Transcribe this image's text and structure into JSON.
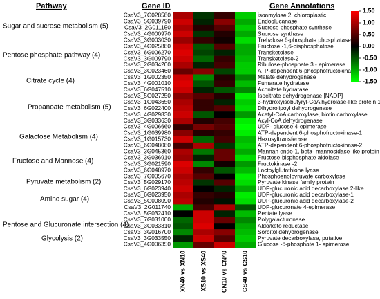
{
  "chart_data": {
    "type": "heatmap",
    "headers": {
      "pathway": "Pathway",
      "gene_id": "Gene ID",
      "annotation": "Gene Annotations"
    },
    "pathways": [
      "Sugar and sucrose  metabolism (5)",
      "Pentose phosphate pathway (4)",
      "Citrate cycle (4)",
      "Propanoate metabolism (5)",
      "Galactose  Metabolism (4)",
      "Fructose and  Mannose (4)",
      "Pyruvate metabolism (2)",
      "Amino sugar (4)",
      "Pentose and Glucuronate intersection (4)",
      "Glycolysis (2)"
    ],
    "x": [
      "XN40 vs XN10",
      "XS10 vs XS40",
      "CN10 vs CN40",
      "CS40 vs CS10"
    ],
    "y": [
      "CsaV3_7G028580",
      "CsaV3_5G039790",
      "CsaV3_2G011150",
      "CsaV3_4G000970",
      "CsaV3_3G003030",
      "CsaV3_4G025880",
      "CsaV3_6G006270",
      "CsaV3_3G009790",
      "CsaV3_2G034200",
      "CsaV3_3G023460",
      "CsaV3_1G002350",
      "CsaV3_4G001010",
      "CsaV3_6G047510",
      "CsaV3_5G027250",
      "CsaV3_1G043650",
      "CsaV3_6G022400",
      "CsaV3_4G029830",
      "CsaV3_3G033630",
      "CsaV3_4G006660",
      "CsaV3_1G039980",
      "CsaV3_1G015730",
      "CsaV3_6G048080",
      "CsaV3_3G045360",
      "CsaV3_3G036910",
      "CsaV3_3G021590",
      "CsaV3_6G048970",
      "CsaV3_7G005670",
      "CsaV3_5G029170",
      "CsaV3_6G023940",
      "CsaV3_6G023950",
      "CsaV3_5G008090",
      "CsaV3_2G011740",
      "CsaV3_5G032410",
      "CsaV3_7G031000",
      "CsaV3_3G033310",
      "CsaV3_3G016700",
      "CsaV3_3G033550",
      "CsaV3_4G006350"
    ],
    "annotations": [
      "isoamylase 2, chloroplastic",
      "Endoglucanase",
      "Sucrose phosphate synthase",
      "Sucrose synthase",
      "Trehalose 6-phosphate phosphatase",
      "Fructose -1,6-bisphosphatase",
      "Transketolase",
      "Transketolase-2",
      "Ribulose-phosphate 3 - epimerase",
      "ATP-dependent 6-phosphofructokinase",
      "Malate dehydrogenase",
      "Fumarate hydratase",
      "Aconitate hydratase",
      "Isocitrate dehydrogenase [NADP]",
      "3-hydroxyisobutyryl-CoA hydrolase-like protein 1",
      "Dihydrolipoyl dehydrogenase",
      "Acetyl-CoA carboxylase, biotin carboxylase",
      "Acyl-CoA dehydrogenase",
      "UDP- glucose 4-epimerase",
      "ATP-dependent 6-phosphofructokinase-1",
      "Hexosyltransferase",
      "ATP-dependent 6-phosphofructokinase-2",
      "Mannan endo-1, beta- mannosidase like protein",
      "Fructose-bisphosphate aldolase",
      "Fructokinase -2",
      "Lactoylglutathione lyase",
      "Phosphoenolpyruvate carboxylase",
      "Pyruvate kinase family protein",
      "UDP-glucuronic acid decarboxylase 2-like",
      "UDP-glucuronic acid decarboxylase-1",
      "UDP-glucuronic acid decarboxylase-2",
      "UDP-glucuronate 4-epimerase",
      "Pectate lyase",
      "Polygalacturonase",
      "Aldo/keto reductase",
      "Sorbitol dehydrogenase",
      "Pyruvate decarboxylase, putative",
      "Glucose -6-phosphate 1- epimerase"
    ],
    "values": [
      [
        1.0,
        -0.3,
        0.3,
        -1.2
      ],
      [
        1.2,
        -0.2,
        0.8,
        -1.0
      ],
      [
        1.0,
        0.2,
        0.5,
        -1.2
      ],
      [
        1.2,
        -0.3,
        0.2,
        -1.0
      ],
      [
        0.9,
        0.3,
        0.1,
        -1.3
      ],
      [
        1.2,
        -0.5,
        0.5,
        -1.0
      ],
      [
        1.3,
        -0.4,
        -0.2,
        -1.0
      ],
      [
        1.2,
        -0.6,
        0.3,
        -1.1
      ],
      [
        1.0,
        -0.2,
        0.4,
        -1.2
      ],
      [
        0.6,
        0.8,
        -0.4,
        -1.2
      ],
      [
        1.2,
        -0.8,
        0.2,
        -0.8
      ],
      [
        1.3,
        -0.5,
        0.3,
        -1.1
      ],
      [
        1.2,
        -0.2,
        -0.5,
        -0.8
      ],
      [
        0.8,
        0.5,
        0.2,
        -1.4
      ],
      [
        1.0,
        0.3,
        -0.2,
        -1.2
      ],
      [
        1.1,
        0.3,
        0.5,
        -1.3
      ],
      [
        1.2,
        -0.5,
        0.0,
        -0.9
      ],
      [
        1.0,
        0.2,
        0.4,
        -1.4
      ],
      [
        0.3,
        0.7,
        0.5,
        -1.5
      ],
      [
        0.8,
        0.2,
        0.3,
        -1.4
      ],
      [
        1.2,
        -0.6,
        0.4,
        -1.1
      ],
      [
        0.4,
        1.0,
        -0.3,
        -1.2
      ],
      [
        1.0,
        -0.7,
        0.6,
        -1.0
      ],
      [
        0.9,
        -0.2,
        0.6,
        -1.3
      ],
      [
        1.3,
        -0.8,
        0.1,
        -0.9
      ],
      [
        1.2,
        0.3,
        -0.5,
        -1.1
      ],
      [
        1.0,
        0.5,
        0.0,
        -1.4
      ],
      [
        1.1,
        -0.3,
        0.5,
        -1.3
      ],
      [
        1.2,
        0.0,
        -0.2,
        -1.0
      ],
      [
        1.0,
        0.3,
        0.2,
        -1.4
      ],
      [
        1.1,
        0.2,
        -0.1,
        -1.3
      ],
      [
        -1.0,
        0.4,
        1.0,
        -0.5
      ],
      [
        0.0,
        1.2,
        -0.2,
        -1.1
      ],
      [
        -0.6,
        1.2,
        0.6,
        -0.8
      ],
      [
        -0.5,
        1.3,
        0.0,
        -1.0
      ],
      [
        -0.8,
        1.0,
        0.8,
        -1.1
      ],
      [
        -0.2,
        1.2,
        0.5,
        -1.2
      ],
      [
        -0.9,
        0.6,
        1.2,
        -1.0
      ]
    ],
    "clim": [
      -1.5,
      1.5
    ],
    "colors": [
      "#00ff00",
      "#000000",
      "#ff0000"
    ],
    "cticks": [
      {
        "value": 1.5,
        "label": "1.50"
      },
      {
        "value": 1,
        "label": "1.00"
      },
      {
        "value": 0.5,
        "label": "0.50"
      },
      {
        "value": 0,
        "label": "0.00"
      },
      {
        "value": -0.5,
        "label": "-0.50"
      },
      {
        "value": -1,
        "label": "-1.00"
      },
      {
        "value": -1.5,
        "label": "-1.50"
      }
    ]
  }
}
